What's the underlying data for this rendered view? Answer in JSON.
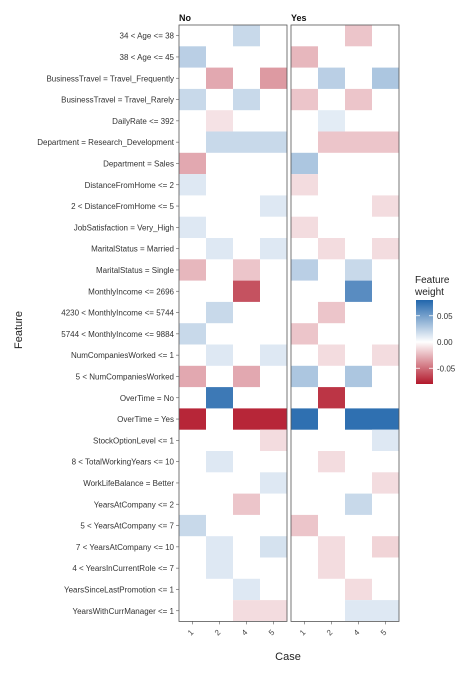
{
  "chart_data": {
    "type": "heatmap",
    "xlabel": "Case",
    "ylabel": "Feature",
    "legend": {
      "title_line1": "Feature",
      "title_line2": "weight",
      "tick_labels": [
        "0.05",
        "0.00",
        "-0.05"
      ],
      "tick_values": [
        0.05,
        0.0,
        -0.05
      ],
      "range": [
        -0.08,
        0.08
      ],
      "placement": "right",
      "colors": {
        "negative": "#b2182b",
        "mid": "#ffffff",
        "positive": "#2166ac"
      }
    },
    "features": [
      "34 < Age <= 38",
      "38 < Age <= 45",
      "BusinessTravel = Travel_Frequently",
      "BusinessTravel = Travel_Rarely",
      "DailyRate <= 392",
      "Department = Research_Development",
      "Department = Sales",
      "DistanceFromHome <= 2",
      "2 < DistanceFromHome <= 5",
      "JobSatisfaction = Very_High",
      "MaritalStatus = Married",
      "MaritalStatus = Single",
      "MonthlyIncome <= 2696",
      "4230 < MonthlyIncome <= 5744",
      "5744 < MonthlyIncome <= 9884",
      "NumCompaniesWorked <= 1",
      "5 < NumCompaniesWorked",
      "OverTime = No",
      "OverTime = Yes",
      "StockOptionLevel <= 1",
      "8 < TotalWorkingYears <= 10",
      "WorkLifeBalance = Better",
      "YearsAtCompany <= 2",
      "5 < YearsAtCompany <= 7",
      "7 < YearsAtCompany <= 10",
      "4 < YearsInCurrentRole <= 7",
      "YearsSinceLastPromotion <= 1",
      "YearsWithCurrManager <= 1"
    ],
    "panels": [
      {
        "title": "No",
        "cases": [
          "1",
          "2",
          "4",
          "5"
        ],
        "values": [
          [
            0,
            0,
            0.02,
            0
          ],
          [
            0.025,
            0,
            0,
            0
          ],
          [
            0,
            -0.03,
            0,
            -0.035
          ],
          [
            0.02,
            0,
            0.02,
            0
          ],
          [
            0,
            -0.01,
            0,
            0
          ],
          [
            0,
            0.02,
            0.02,
            0.02
          ],
          [
            -0.03,
            0,
            0,
            0
          ],
          [
            0.012,
            0,
            0,
            0
          ],
          [
            0,
            0,
            0,
            0.012
          ],
          [
            0.012,
            0,
            0,
            0
          ],
          [
            0,
            0.012,
            0,
            0.012
          ],
          [
            -0.025,
            0,
            -0.02,
            0
          ],
          [
            0,
            0,
            -0.06,
            0
          ],
          [
            0,
            0.02,
            0,
            0
          ],
          [
            0.02,
            0,
            0,
            0
          ],
          [
            0,
            0.012,
            0,
            0.012
          ],
          [
            -0.03,
            0,
            -0.03,
            0
          ],
          [
            0,
            0.07,
            0,
            0
          ],
          [
            -0.075,
            0,
            -0.075,
            -0.075
          ],
          [
            0,
            0,
            0,
            -0.012
          ],
          [
            0,
            0.012,
            0,
            0
          ],
          [
            0,
            0,
            0,
            0.012
          ],
          [
            0,
            0,
            -0.02,
            0
          ],
          [
            0.02,
            0,
            0,
            0
          ],
          [
            0,
            0.012,
            0,
            0.015
          ],
          [
            0,
            0.012,
            0,
            0
          ],
          [
            0,
            0,
            0.012,
            0
          ],
          [
            0,
            0,
            -0.012,
            -0.012
          ]
        ]
      },
      {
        "title": "Yes",
        "cases": [
          "1",
          "2",
          "4",
          "5"
        ],
        "values": [
          [
            0,
            0,
            -0.02,
            0
          ],
          [
            -0.025,
            0,
            0,
            0
          ],
          [
            0,
            0.025,
            0,
            0.03
          ],
          [
            -0.02,
            0,
            -0.02,
            0
          ],
          [
            0,
            0.01,
            0,
            0
          ],
          [
            0,
            -0.02,
            -0.02,
            -0.02
          ],
          [
            0.03,
            0,
            0,
            0
          ],
          [
            -0.012,
            0,
            0,
            0
          ],
          [
            0,
            0,
            0,
            -0.012
          ],
          [
            -0.012,
            0,
            0,
            0
          ],
          [
            0,
            -0.012,
            0,
            -0.012
          ],
          [
            0.025,
            0,
            0.02,
            0
          ],
          [
            0,
            0,
            0.06,
            0
          ],
          [
            0,
            -0.02,
            0,
            0
          ],
          [
            -0.02,
            0,
            0,
            0
          ],
          [
            0,
            -0.012,
            0,
            -0.012
          ],
          [
            0.03,
            0,
            0.03,
            0
          ],
          [
            0,
            -0.07,
            0,
            0
          ],
          [
            0.075,
            0,
            0.075,
            0.075
          ],
          [
            0,
            0,
            0,
            0.012
          ],
          [
            0,
            -0.012,
            0,
            0
          ],
          [
            0,
            0,
            0,
            -0.012
          ],
          [
            0,
            0,
            0.02,
            0
          ],
          [
            -0.02,
            0,
            0,
            0
          ],
          [
            0,
            -0.012,
            0,
            -0.015
          ],
          [
            0,
            -0.012,
            0,
            0
          ],
          [
            0,
            0,
            -0.012,
            0
          ],
          [
            0,
            0,
            0.012,
            0.012
          ]
        ]
      }
    ]
  }
}
